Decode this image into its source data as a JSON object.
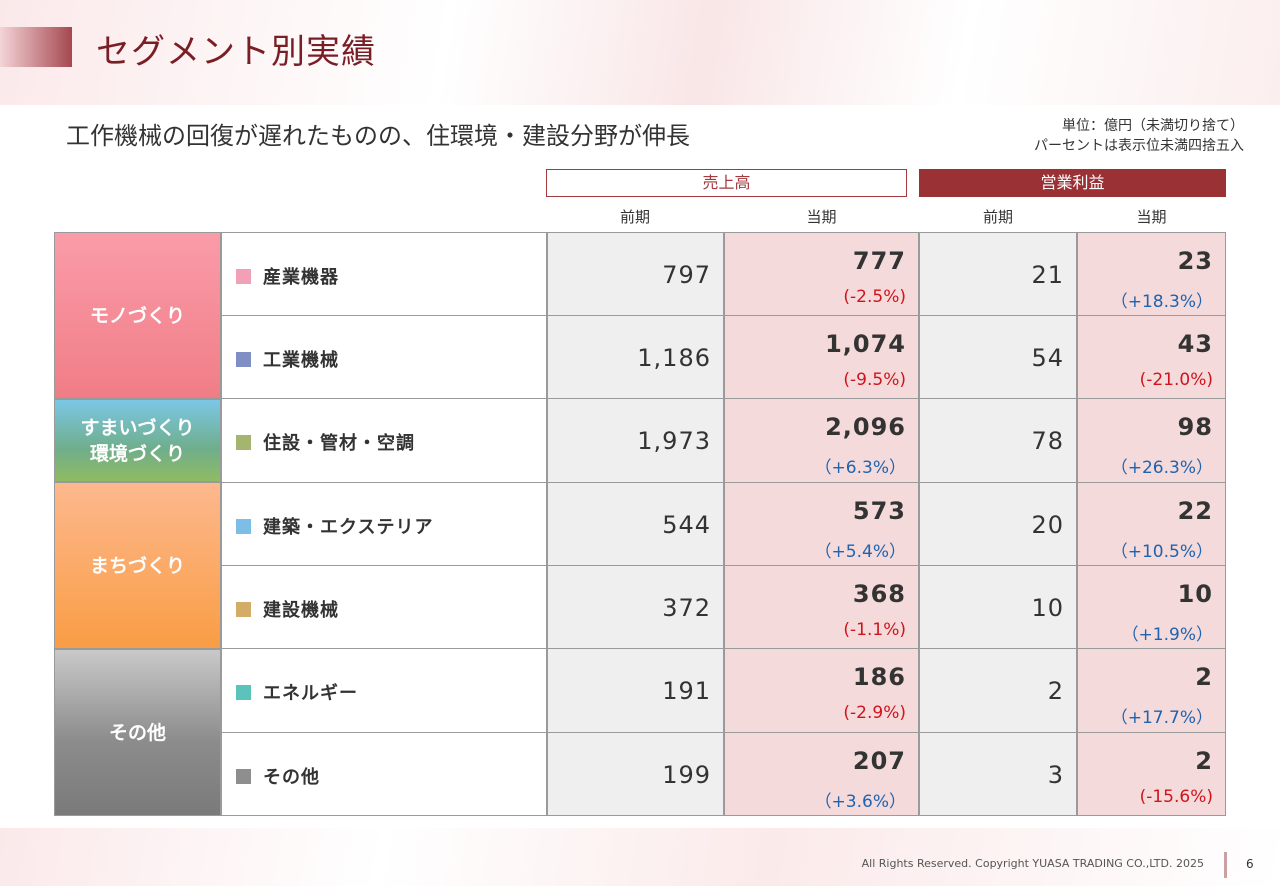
{
  "header": {
    "title": "セグメント別実績",
    "subtitle": "工作機械の回復が遅れたものの、住環境・建設分野が伸長",
    "unit_line1": "単位：億円（未満切り捨て）",
    "unit_line2": "パーセントは表示位未満四捨五入"
  },
  "table": {
    "group_headers": {
      "sales": "売上高",
      "profit": "営業利益"
    },
    "sub_headers": [
      "前期",
      "当期",
      "前期",
      "当期"
    ],
    "segments": [
      {
        "name": "モノづくり"
      },
      {
        "name_line1": "すまいづくり",
        "name_line2": "環境づくり"
      },
      {
        "name": "まちづくり"
      },
      {
        "name": "その他"
      }
    ],
    "rows": [
      {
        "label": "産業機器",
        "color": "#f2a0b6",
        "sales_prev": "797",
        "sales_curr": "777",
        "sales_pct": "(-2.5%)",
        "profit_prev": "21",
        "profit_curr": "23",
        "profit_pct": "（+18.3%）"
      },
      {
        "label": "工業機械",
        "color": "#7f8fc4",
        "sales_prev": "1,186",
        "sales_curr": "1,074",
        "sales_pct": "(-9.5%)",
        "profit_prev": "54",
        "profit_curr": "43",
        "profit_pct": "(-21.0%)"
      },
      {
        "label": "住設・管材・空調",
        "color": "#a3b56e",
        "sales_prev": "1,973",
        "sales_curr": "2,096",
        "sales_pct": "（+6.3%）",
        "profit_prev": "78",
        "profit_curr": "98",
        "profit_pct": "（+26.3%）"
      },
      {
        "label": "建築・エクステリア",
        "color": "#7dbde6",
        "sales_prev": "544",
        "sales_curr": "573",
        "sales_pct": "（+5.4%）",
        "profit_prev": "20",
        "profit_curr": "22",
        "profit_pct": "（+10.5%）"
      },
      {
        "label": "建設機械",
        "color": "#d3ad68",
        "sales_prev": "372",
        "sales_curr": "368",
        "sales_pct": "(-1.1%)",
        "profit_prev": "10",
        "profit_curr": "10",
        "profit_pct": "（+1.9%）"
      },
      {
        "label": "エネルギー",
        "color": "#5cc3bb",
        "sales_prev": "191",
        "sales_curr": "186",
        "sales_pct": "(-2.9%)",
        "profit_prev": "2",
        "profit_curr": "2",
        "profit_pct": "（+17.7%）"
      },
      {
        "label": "その他",
        "color": "#8e8e8e",
        "sales_prev": "199",
        "sales_curr": "207",
        "sales_pct": "（+3.6%）",
        "profit_prev": "3",
        "profit_curr": "2",
        "profit_pct": "(-15.6%)"
      }
    ]
  },
  "footer": {
    "copyright": "All Rights Reserved. Copyright  YUASA TRADING CO.,LTD. 2025",
    "page_number": "6"
  }
}
